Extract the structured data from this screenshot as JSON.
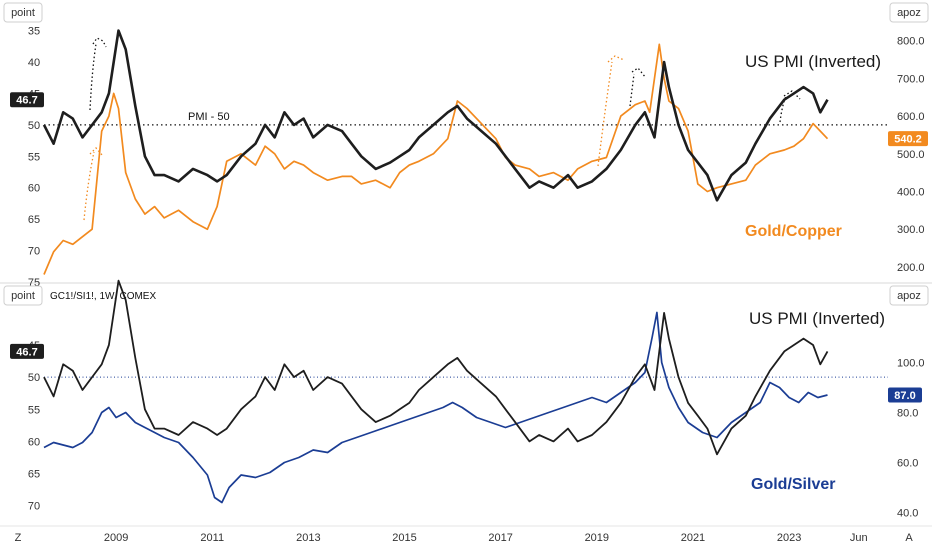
{
  "colors": {
    "pmi": "#1e1e1e",
    "copper_ratio": "#f28a1f",
    "silver_ratio": "#1b3d94",
    "divider": "#d9d9d9",
    "text": "#333333"
  },
  "x_axis": {
    "labels": [
      "2009",
      "2011",
      "2013",
      "2015",
      "2017",
      "2019",
      "2021",
      "2023",
      "Jun"
    ],
    "label_dates": [
      2009.0,
      2011.0,
      2013.0,
      2015.0,
      2017.0,
      2019.0,
      2021.0,
      2023.0,
      2024.45
    ],
    "range": [
      2007.5,
      2024.6
    ],
    "corner_left": "Z",
    "corner_right": "A"
  },
  "top_panel": {
    "left_unit": "point",
    "right_unit": "apoz",
    "title": "US PMI (Inverted)",
    "series_label": "Gold/Copper",
    "reference_label": "PMI - 50",
    "left_badge": "46.7",
    "right_badge": "540.2"
  },
  "bottom_panel": {
    "left_unit": "point",
    "right_unit": "apoz",
    "symbol": "GC1!/SI1!, 1W, COMEX",
    "title": "US PMI (Inverted)",
    "series_label": "Gold/Silver",
    "left_badge": "46.7",
    "right_badge": "87.0"
  },
  "chart_data": [
    {
      "type": "line",
      "x_unit": "year",
      "left_axis": {
        "label": "point",
        "inverted": true,
        "range": [
          33,
          75
        ],
        "ticks": [
          35,
          40,
          45,
          50,
          55,
          60,
          65,
          70,
          75
        ]
      },
      "right_axis": {
        "label": "apoz",
        "range": [
          160,
          860
        ],
        "ticks": [
          200.0,
          300.0,
          400.0,
          500.0,
          600.0,
          700.0,
          800.0
        ]
      },
      "reference_line": {
        "label": "PMI - 50",
        "axis": "left",
        "value": 50
      },
      "legend": "none",
      "grid": false,
      "series": [
        {
          "name": "US PMI (Inverted)",
          "axis": "left",
          "x": [
            2007.5,
            2007.7,
            2007.9,
            2008.1,
            2008.3,
            2008.5,
            2008.7,
            2008.85,
            2008.95,
            2009.05,
            2009.2,
            2009.4,
            2009.6,
            2009.8,
            2010.0,
            2010.3,
            2010.6,
            2010.9,
            2011.1,
            2011.3,
            2011.6,
            2011.9,
            2012.1,
            2012.3,
            2012.5,
            2012.7,
            2012.9,
            2013.1,
            2013.4,
            2013.7,
            2013.9,
            2014.1,
            2014.4,
            2014.7,
            2014.9,
            2015.1,
            2015.3,
            2015.6,
            2015.9,
            2016.1,
            2016.3,
            2016.6,
            2016.9,
            2017.1,
            2017.3,
            2017.6,
            2017.8,
            2018.1,
            2018.4,
            2018.6,
            2018.9,
            2019.2,
            2019.5,
            2019.8,
            2020.0,
            2020.1,
            2020.2,
            2020.3,
            2020.4,
            2020.5,
            2020.7,
            2020.9,
            2021.1,
            2021.3,
            2021.5,
            2021.8,
            2022.1,
            2022.3,
            2022.6,
            2022.9,
            2023.1,
            2023.3,
            2023.5,
            2023.65,
            2023.8
          ],
          "values": [
            50,
            53,
            48,
            49,
            52,
            50,
            48,
            45,
            40,
            35,
            38,
            47,
            55,
            58,
            58,
            59,
            57,
            58,
            59,
            58,
            55,
            53,
            50,
            52,
            48,
            50,
            49,
            52,
            50,
            51,
            53,
            55,
            57,
            56,
            55,
            54,
            52,
            50,
            48,
            47,
            49,
            51,
            53,
            55,
            57,
            60,
            59,
            60,
            58,
            60,
            59,
            57,
            54,
            50,
            48,
            50,
            52,
            46,
            40,
            44,
            50,
            54,
            56,
            58,
            62,
            58,
            56,
            53,
            49,
            46,
            45,
            44,
            45,
            48,
            46
          ]
        },
        {
          "name": "Gold/Copper",
          "axis": "right",
          "x": [
            2007.5,
            2007.7,
            2007.9,
            2008.1,
            2008.3,
            2008.5,
            2008.7,
            2008.85,
            2008.95,
            2009.05,
            2009.2,
            2009.4,
            2009.6,
            2009.8,
            2010.0,
            2010.3,
            2010.6,
            2010.9,
            2011.1,
            2011.3,
            2011.6,
            2011.9,
            2012.1,
            2012.3,
            2012.5,
            2012.7,
            2012.9,
            2013.1,
            2013.4,
            2013.7,
            2013.9,
            2014.1,
            2014.4,
            2014.7,
            2014.9,
            2015.1,
            2015.3,
            2015.6,
            2015.9,
            2016.1,
            2016.3,
            2016.6,
            2016.9,
            2017.1,
            2017.3,
            2017.6,
            2017.8,
            2018.1,
            2018.4,
            2018.6,
            2018.9,
            2019.2,
            2019.5,
            2019.8,
            2020.0,
            2020.1,
            2020.2,
            2020.3,
            2020.4,
            2020.5,
            2020.7,
            2020.9,
            2021.1,
            2021.3,
            2021.5,
            2021.8,
            2022.1,
            2022.3,
            2022.6,
            2022.9,
            2023.1,
            2023.3,
            2023.5,
            2023.65,
            2023.8
          ],
          "values": [
            180,
            240,
            270,
            260,
            280,
            300,
            560,
            600,
            660,
            620,
            450,
            380,
            340,
            360,
            330,
            350,
            320,
            300,
            360,
            480,
            500,
            470,
            520,
            500,
            460,
            480,
            470,
            450,
            430,
            440,
            440,
            420,
            430,
            410,
            450,
            470,
            480,
            500,
            540,
            640,
            620,
            580,
            540,
            490,
            470,
            460,
            440,
            450,
            430,
            460,
            480,
            490,
            600,
            630,
            640,
            610,
            700,
            790,
            700,
            640,
            620,
            560,
            420,
            400,
            410,
            420,
            430,
            470,
            500,
            510,
            520,
            540,
            580,
            560,
            540
          ]
        }
      ]
    },
    {
      "type": "line",
      "x_unit": "year",
      "left_axis": {
        "label": "point",
        "inverted": true,
        "range": [
          38,
          73
        ],
        "ticks": [
          45,
          50,
          55,
          60,
          65,
          70
        ]
      },
      "right_axis": {
        "label": "apoz",
        "range": [
          35,
          125
        ],
        "ticks": [
          40.0,
          60.0,
          80.0,
          100.0
        ]
      },
      "reference_line": {
        "axis": "left",
        "value": 50
      },
      "legend": "none",
      "grid": false,
      "series": [
        {
          "name": "US PMI (Inverted)",
          "axis": "left",
          "x": [
            2007.5,
            2007.7,
            2007.9,
            2008.1,
            2008.3,
            2008.5,
            2008.7,
            2008.85,
            2008.95,
            2009.05,
            2009.2,
            2009.4,
            2009.6,
            2009.8,
            2010.0,
            2010.3,
            2010.6,
            2010.9,
            2011.1,
            2011.3,
            2011.6,
            2011.9,
            2012.1,
            2012.3,
            2012.5,
            2012.7,
            2012.9,
            2013.1,
            2013.4,
            2013.7,
            2013.9,
            2014.1,
            2014.4,
            2014.7,
            2014.9,
            2015.1,
            2015.3,
            2015.6,
            2015.9,
            2016.1,
            2016.3,
            2016.6,
            2016.9,
            2017.1,
            2017.3,
            2017.6,
            2017.8,
            2018.1,
            2018.4,
            2018.6,
            2018.9,
            2019.2,
            2019.5,
            2019.8,
            2020.0,
            2020.1,
            2020.2,
            2020.3,
            2020.4,
            2020.5,
            2020.7,
            2020.9,
            2021.1,
            2021.3,
            2021.5,
            2021.8,
            2022.1,
            2022.3,
            2022.6,
            2022.9,
            2023.1,
            2023.3,
            2023.5,
            2023.65,
            2023.8
          ],
          "values": [
            50,
            53,
            48,
            49,
            52,
            50,
            48,
            45,
            40,
            35,
            38,
            47,
            55,
            58,
            58,
            59,
            57,
            58,
            59,
            58,
            55,
            53,
            50,
            52,
            48,
            50,
            49,
            52,
            50,
            51,
            53,
            55,
            57,
            56,
            55,
            54,
            52,
            50,
            48,
            47,
            49,
            51,
            53,
            55,
            57,
            60,
            59,
            60,
            58,
            60,
            59,
            57,
            54,
            50,
            48,
            50,
            52,
            46,
            40,
            44,
            50,
            54,
            56,
            58,
            62,
            58,
            56,
            53,
            49,
            46,
            45,
            44,
            45,
            48,
            46
          ]
        },
        {
          "name": "Gold/Silver",
          "axis": "right",
          "x": [
            2007.5,
            2007.7,
            2007.9,
            2008.1,
            2008.3,
            2008.5,
            2008.7,
            2008.85,
            2009.0,
            2009.2,
            2009.4,
            2009.6,
            2009.8,
            2010.0,
            2010.3,
            2010.6,
            2010.9,
            2011.05,
            2011.2,
            2011.35,
            2011.6,
            2011.9,
            2012.2,
            2012.5,
            2012.8,
            2013.1,
            2013.4,
            2013.7,
            2014.0,
            2014.3,
            2014.6,
            2014.9,
            2015.2,
            2015.5,
            2015.8,
            2016.0,
            2016.2,
            2016.5,
            2016.8,
            2017.1,
            2017.4,
            2017.7,
            2018.0,
            2018.3,
            2018.6,
            2018.9,
            2019.2,
            2019.5,
            2019.8,
            2020.0,
            2020.15,
            2020.25,
            2020.35,
            2020.5,
            2020.7,
            2020.9,
            2021.2,
            2021.5,
            2021.8,
            2022.1,
            2022.4,
            2022.6,
            2022.8,
            2023.0,
            2023.2,
            2023.4,
            2023.6,
            2023.8
          ],
          "values": [
            66,
            68,
            67,
            66,
            68,
            72,
            80,
            82,
            78,
            80,
            76,
            74,
            72,
            70,
            68,
            62,
            55,
            46,
            44,
            50,
            55,
            54,
            56,
            60,
            62,
            65,
            64,
            68,
            70,
            72,
            74,
            76,
            78,
            80,
            82,
            84,
            82,
            78,
            76,
            74,
            76,
            78,
            80,
            82,
            84,
            86,
            84,
            88,
            92,
            96,
            110,
            120,
            100,
            90,
            82,
            76,
            72,
            70,
            76,
            80,
            84,
            92,
            90,
            86,
            84,
            88,
            86,
            87
          ]
        }
      ]
    }
  ]
}
